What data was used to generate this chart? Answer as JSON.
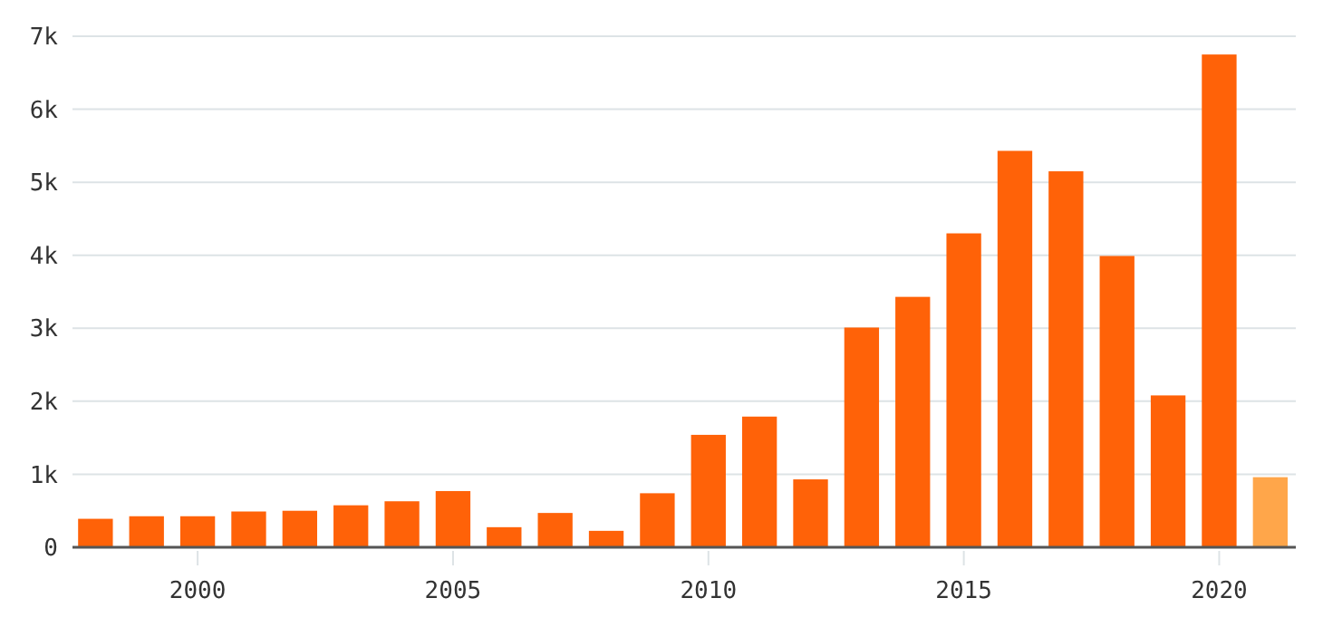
{
  "chart_data": {
    "type": "bar",
    "x": [
      1998,
      1999,
      2000,
      2001,
      2002,
      2003,
      2004,
      2005,
      2006,
      2007,
      2008,
      2009,
      2010,
      2011,
      2012,
      2013,
      2014,
      2015,
      2016,
      2017,
      2018,
      2019,
      2020,
      2021
    ],
    "values": [
      390,
      425,
      425,
      490,
      500,
      575,
      630,
      770,
      275,
      470,
      225,
      740,
      1540,
      1790,
      930,
      3010,
      3430,
      4300,
      5430,
      5150,
      3990,
      2080,
      6750,
      960
    ],
    "colors": [
      "#ff6208",
      "#ff6208",
      "#ff6208",
      "#ff6208",
      "#ff6208",
      "#ff6208",
      "#ff6208",
      "#ff6208",
      "#ff6208",
      "#ff6208",
      "#ff6208",
      "#ff6208",
      "#ff6208",
      "#ff6208",
      "#ff6208",
      "#ff6208",
      "#ff6208",
      "#ff6208",
      "#ff6208",
      "#ff6208",
      "#ff6208",
      "#ff6208",
      "#ff6208",
      "#ffa64a"
    ],
    "xlim": [
      1997.55,
      2021.5
    ],
    "xticks": [
      2000,
      2005,
      2010,
      2015,
      2020
    ],
    "ylim": [
      0,
      7000
    ],
    "yticks": [
      {
        "value": 0,
        "label": "0"
      },
      {
        "value": 1000,
        "label": "1k"
      },
      {
        "value": 2000,
        "label": "2k"
      },
      {
        "value": 3000,
        "label": "3k"
      },
      {
        "value": 4000,
        "label": "4k"
      },
      {
        "value": 5000,
        "label": "5k"
      },
      {
        "value": 6000,
        "label": "6k"
      },
      {
        "value": 7000,
        "label": "7k"
      }
    ],
    "grid": "y"
  }
}
